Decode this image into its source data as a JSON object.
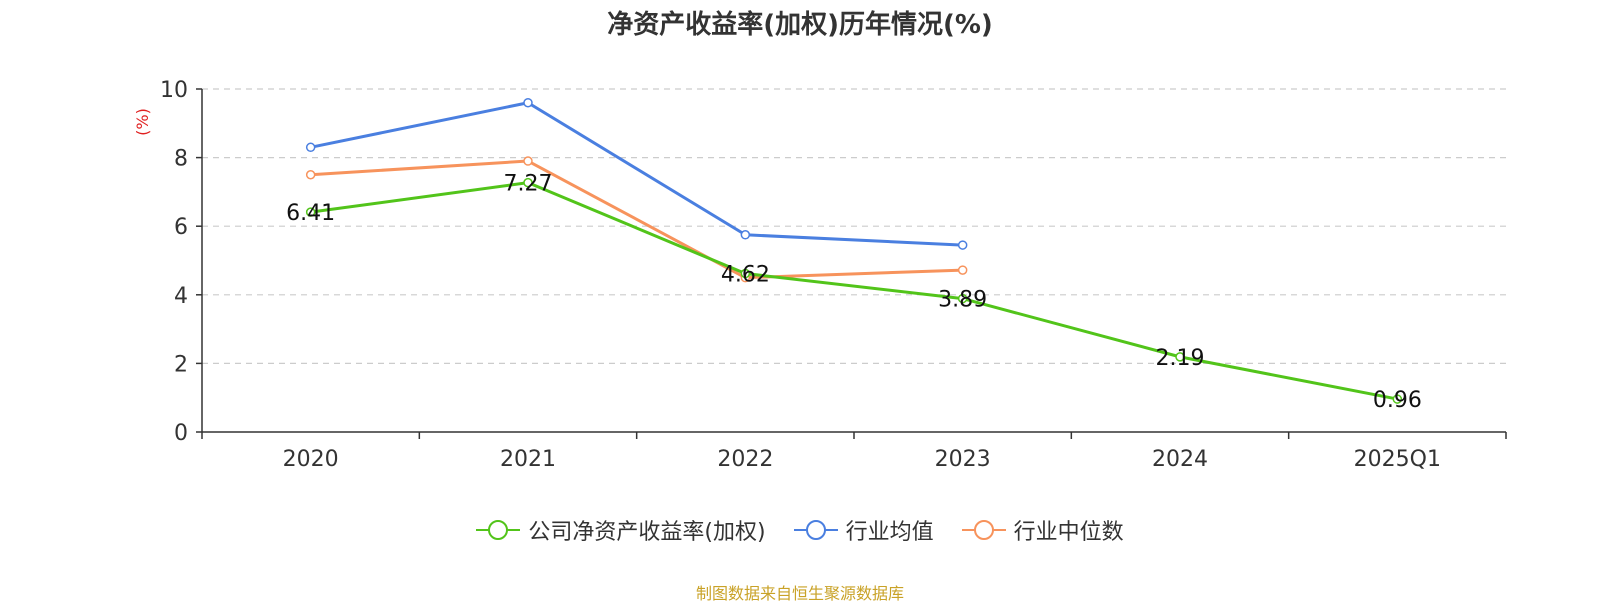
{
  "chart_data": {
    "type": "line",
    "title": "净资产收益率(加权)历年情况(%)",
    "ylabel": "(%)",
    "xlabel": "",
    "categories": [
      "2020",
      "2021",
      "2022",
      "2023",
      "2024",
      "2025Q1"
    ],
    "ylim": [
      0,
      10
    ],
    "yticks": [
      0,
      2,
      4,
      6,
      8,
      10
    ],
    "grid": true,
    "legend_position": "bottom-center",
    "series": [
      {
        "name": "公司净资产收益率(加权)",
        "color": "#52c41a",
        "values": [
          6.41,
          7.27,
          4.62,
          3.89,
          2.19,
          0.96
        ],
        "labels": [
          "6.41",
          "7.27",
          "4.62",
          "3.89",
          "2.19",
          "0.96"
        ]
      },
      {
        "name": "行业均值",
        "color": "#4a7fe0",
        "values": [
          8.3,
          9.6,
          5.75,
          5.45,
          null,
          null
        ]
      },
      {
        "name": "行业中位数",
        "color": "#f7935c",
        "values": [
          7.5,
          7.9,
          4.5,
          4.72,
          null,
          null
        ]
      }
    ]
  },
  "source_text": "制图数据来自恒生聚源数据库"
}
